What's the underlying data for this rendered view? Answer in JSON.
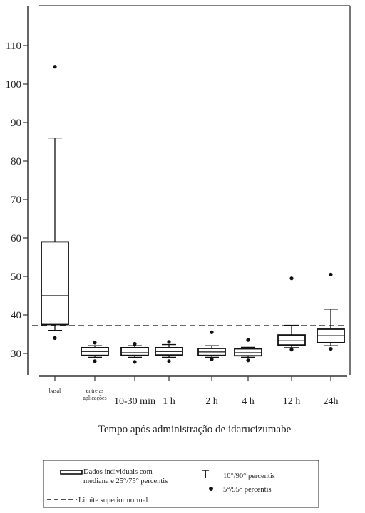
{
  "chart_data": {
    "type": "box",
    "title": "",
    "xlabel": "Tempo após administração de idarucizumabe",
    "ylabel": "",
    "y_ticks": [
      30,
      40,
      50,
      60,
      70,
      80,
      90,
      100,
      110
    ],
    "ylim": [
      26,
      113
    ],
    "categories": [
      "basal",
      "entre as aplicações",
      "10-30 min",
      "1 h",
      "2 h",
      "4 h",
      "12 h",
      "24h"
    ],
    "boxes": [
      {
        "category": "basal",
        "q1": 37.5,
        "median": 45,
        "q3": 59,
        "whisker_low": 36,
        "whisker_high": 86,
        "outliers": [
          34,
          104.5
        ]
      },
      {
        "category": "entre as aplicações",
        "q1": 29.5,
        "median": 30.5,
        "q3": 31.5,
        "whisker_low": 29,
        "whisker_high": 32,
        "outliers": [
          28,
          32.8
        ]
      },
      {
        "category": "10-30 min",
        "q1": 29.5,
        "median": 30.2,
        "q3": 31.5,
        "whisker_low": 29,
        "whisker_high": 32,
        "outliers": [
          27.8,
          32.5
        ]
      },
      {
        "category": "1 h",
        "q1": 29.6,
        "median": 30.5,
        "q3": 31.5,
        "whisker_low": 29,
        "whisker_high": 32.3,
        "outliers": [
          28,
          33
        ]
      },
      {
        "category": "2 h",
        "q1": 29.5,
        "median": 30.4,
        "q3": 31.3,
        "whisker_low": 29,
        "whisker_high": 32,
        "outliers": [
          28.5,
          35.5
        ]
      },
      {
        "category": "4 h",
        "q1": 29.4,
        "median": 30.2,
        "q3": 31.2,
        "whisker_low": 29,
        "whisker_high": 31.6,
        "outliers": [
          28.2,
          33.5
        ]
      },
      {
        "category": "12 h",
        "q1": 32.2,
        "median": 33.3,
        "q3": 34.8,
        "whisker_low": 31.5,
        "whisker_high": 37.3,
        "outliers": [
          31,
          49.5
        ]
      },
      {
        "category": "24h",
        "q1": 32.8,
        "median": 34.6,
        "q3": 36.3,
        "whisker_low": 32,
        "whisker_high": 41.5,
        "outliers": [
          31.2,
          50.5
        ]
      }
    ],
    "reference_line": {
      "y": 37.2,
      "style": "dashed",
      "label": "Limite superior normal"
    },
    "legend": {
      "position": "bottom",
      "box_label": "Dados individuais com mediana e 25°/75° percentis",
      "whisker_label": "10°/90° percentis",
      "whisker_symbol": "T",
      "point_label": "5°/95° percentis",
      "line_label": "Limite superior normal"
    },
    "grid": false
  }
}
